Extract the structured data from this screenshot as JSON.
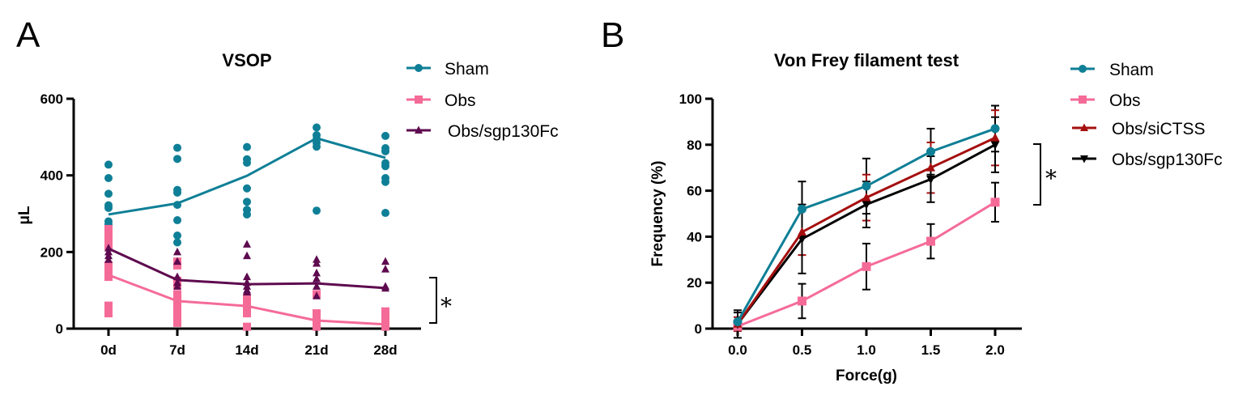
{
  "chart_data": [
    {
      "panel": "A",
      "type": "scatter",
      "title": "VSOP",
      "xlabel": "",
      "ylabel": "μL",
      "categories": [
        "0d",
        "7d",
        "14d",
        "21d",
        "28d"
      ],
      "ylim": [
        0,
        600
      ],
      "yticks": [
        0,
        200,
        400,
        600
      ],
      "grid": false,
      "legend_position": "right",
      "series": [
        {
          "name": "Sham",
          "color": "#0E7F96",
          "marker": "circle",
          "means": [
            298,
            327,
            399,
            497,
            446
          ],
          "points": [
            [
              428,
              393,
              352,
              322,
              315,
              280,
              272,
              243,
              236,
              212
            ],
            [
              472,
              443,
              362,
              355,
              323,
              283,
              243,
              225
            ],
            [
              474,
              442,
              433,
              366,
              331,
              310,
              298
            ],
            [
              525,
              505,
              495,
              485,
              475,
              308
            ],
            [
              503,
              471,
              463,
              432,
              424,
              393,
              383,
              302
            ]
          ]
        },
        {
          "name": "Obs",
          "color": "#F56B98",
          "marker": "square",
          "means": [
            140,
            72,
            59,
            21,
            11
          ],
          "points": [
            [
              260,
              245,
              230,
              215,
              165,
              155,
              145,
              135,
              60,
              40
            ],
            [
              175,
              165,
              125,
              115,
              90,
              70,
              55,
              40,
              25,
              15
            ],
            [
              80,
              70,
              60,
              50,
              40,
              5
            ],
            [
              90,
              40,
              30,
              20,
              10,
              5
            ],
            [
              45,
              35,
              25,
              15,
              5
            ]
          ]
        },
        {
          "name": "Obs/sgp130Fc",
          "color": "#5E0A4F",
          "marker": "triangle-up",
          "means": [
            209,
            127,
            116,
            118,
            106
          ],
          "points": [
            [
              210,
              200,
              190,
              180
            ],
            [
              200,
              175,
              135,
              120,
              110
            ],
            [
              220,
              190,
              135,
              120,
              110,
              100,
              95
            ],
            [
              180,
              170,
              145,
              130,
              110,
              85
            ],
            [
              175,
              155,
              110,
              105
            ]
          ]
        }
      ],
      "annotations": [
        {
          "text": "*",
          "between": [
            "Obs/sgp130Fc",
            "Obs"
          ],
          "at": "28d"
        }
      ]
    },
    {
      "panel": "B",
      "type": "line",
      "title": "Von Frey filament test",
      "xlabel": "Force(g)",
      "ylabel": "Frequency (%)",
      "x": [
        0.0,
        0.5,
        1.0,
        1.5,
        2.0
      ],
      "xticks": [
        "0.0",
        "0.5",
        "1.0",
        "1.5",
        "2.0"
      ],
      "xlim": [
        -0.25,
        2.1
      ],
      "ylim": [
        0,
        100
      ],
      "yticks": [
        0,
        20,
        40,
        60,
        80,
        100
      ],
      "grid": false,
      "legend_position": "right",
      "series": [
        {
          "name": "Sham",
          "color": "#0E7F96",
          "marker": "circle",
          "values": [
            3,
            52,
            62,
            77,
            87
          ],
          "errors": [
            4,
            12,
            12,
            10,
            10
          ],
          "errcolor": "#000000"
        },
        {
          "name": "Obs",
          "color": "#F56B98",
          "marker": "square",
          "values": [
            1,
            12,
            27,
            38,
            55
          ],
          "errors": [
            0,
            7.5,
            10,
            7.5,
            8.5
          ],
          "errcolor": "#000000"
        },
        {
          "name": "Obs/siCTSS",
          "color": "#A50F0F",
          "marker": "triangle-up",
          "values": [
            2,
            42,
            57,
            70,
            83
          ],
          "errors": [
            3,
            10,
            10,
            11,
            12
          ],
          "errcolor": "#A50F0F"
        },
        {
          "name": "Obs/sgp130Fc",
          "color": "#000000",
          "marker": "triangle-down",
          "values": [
            2,
            39,
            54,
            65,
            80
          ],
          "errors": [
            6,
            15,
            10,
            10,
            12
          ],
          "errcolor": "#000000"
        }
      ],
      "annotations": [
        {
          "text": "*",
          "between": [
            "Obs/sgp130Fc",
            "Obs"
          ],
          "at": "2.0"
        }
      ]
    }
  ],
  "labels": {
    "panel_a": "A",
    "panel_b": "B",
    "star": "*"
  }
}
